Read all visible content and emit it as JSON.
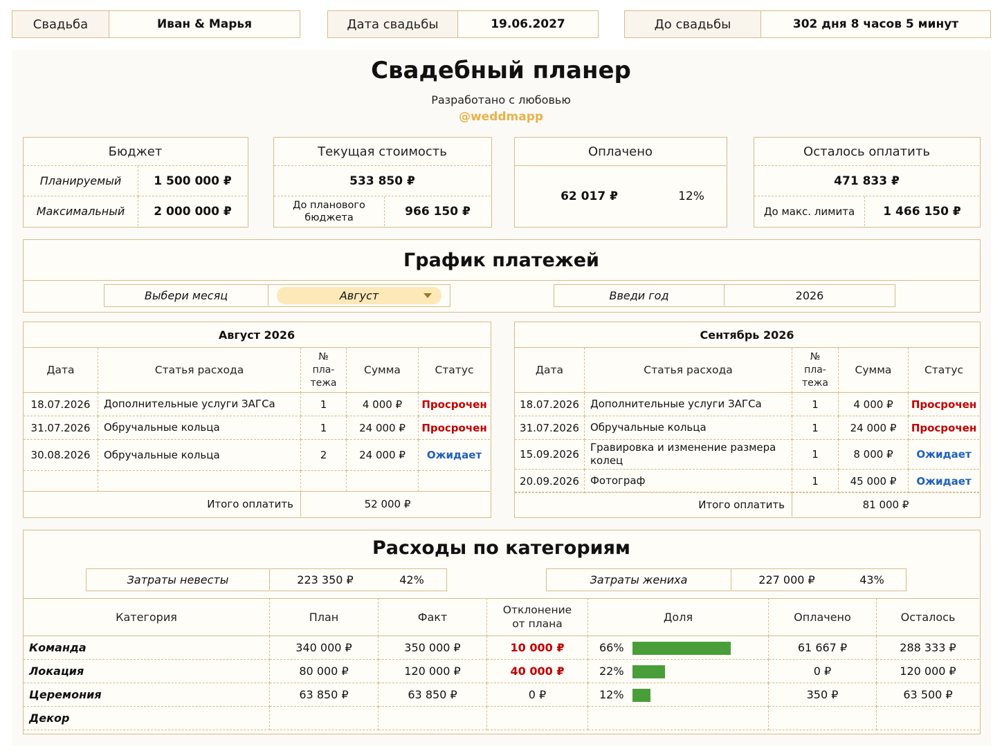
{
  "header": {
    "wedding_label": "Свадьба",
    "wedding_value": "Иван & Марья",
    "date_label": "Дата свадьбы",
    "date_value": "19.06.2027",
    "countdown_label": "До свадьбы",
    "countdown_value": "302 дня 8 часов 5 минут"
  },
  "title": "Свадебный планер",
  "subtitle": "Разработано с любовью",
  "handle": "@weddmapp",
  "budget": {
    "title": "Бюджет",
    "planned_label": "Планируемый",
    "planned_value": "1 500 000 ₽",
    "max_label": "Максимальный",
    "max_value": "2 000 000 ₽"
  },
  "current": {
    "title": "Текущая стоимость",
    "value": "533 850 ₽",
    "to_plan_label": "До планового бюджета",
    "to_plan_value": "966 150 ₽"
  },
  "paid": {
    "title": "Оплачено",
    "value": "62 017 ₽",
    "percent": "12%"
  },
  "remaining": {
    "title": "Осталось оплатить",
    "value": "471 833 ₽",
    "to_max_label": "До макс. лимита",
    "to_max_value": "1 466 150 ₽"
  },
  "schedule": {
    "title": "График платежей",
    "month_label": "Выбери месяц",
    "month_value": "Август",
    "year_label": "Введи год",
    "year_value": "2026"
  },
  "columns": {
    "date": "Дата",
    "item": "Статья расхода",
    "num": "№ пла-тежа",
    "sum": "Сумма",
    "status": "Статус",
    "total_label": "Итого оплатить"
  },
  "august": {
    "title": "Август 2026",
    "rows": [
      {
        "date": "18.07.2026",
        "item": "Дополнительные услуги ЗАГСа",
        "num": "1",
        "sum": "4 000 ₽",
        "status": "Просрочен",
        "kind": "overdue"
      },
      {
        "date": "31.07.2026",
        "item": "Обручальные кольца",
        "num": "1",
        "sum": "24 000 ₽",
        "status": "Просрочен",
        "kind": "overdue"
      },
      {
        "date": "30.08.2026",
        "item": "Обручальные кольца",
        "num": "2",
        "sum": "24 000 ₽",
        "status": "Ожидает",
        "kind": "waiting"
      }
    ],
    "total": "52 000 ₽"
  },
  "september": {
    "title": "Сентябрь 2026",
    "rows": [
      {
        "date": "18.07.2026",
        "item": "Дополнительные услуги ЗАГСа",
        "num": "1",
        "sum": "4 000 ₽",
        "status": "Просрочен",
        "kind": "overdue"
      },
      {
        "date": "31.07.2026",
        "item": "Обручальные кольца",
        "num": "1",
        "sum": "24 000 ₽",
        "status": "Просрочен",
        "kind": "overdue"
      },
      {
        "date": "15.09.2026",
        "item": "Гравировка и изменение размера колец",
        "num": "1",
        "sum": "8 000 ₽",
        "status": "Ожидает",
        "kind": "waiting"
      },
      {
        "date": "20.09.2026",
        "item": "Фотограф",
        "num": "1",
        "sum": "45 000 ₽",
        "status": "Ожидает",
        "kind": "waiting"
      }
    ],
    "total": "81 000 ₽"
  },
  "categories": {
    "title": "Расходы по категориям",
    "bride_label": "Затраты невесты",
    "bride_value": "223 350 ₽",
    "bride_percent": "42%",
    "groom_label": "Затраты жениха",
    "groom_value": "227 000 ₽",
    "groom_percent": "43%",
    "headers": {
      "category": "Категория",
      "plan": "План",
      "fact": "Факт",
      "deviation": "Отклонение от плана",
      "share": "Доля",
      "paid": "Оплачено",
      "left": "Осталось"
    },
    "rows": [
      {
        "name": "Команда",
        "plan": "340 000 ₽",
        "fact": "350 000 ₽",
        "deviation": "10 000 ₽",
        "dev_red": true,
        "share": "66%",
        "share_value": 0.66,
        "paid": "61 667 ₽",
        "left": "288 333 ₽"
      },
      {
        "name": "Локация",
        "plan": "80 000 ₽",
        "fact": "120 000 ₽",
        "deviation": "40 000 ₽",
        "dev_red": true,
        "share": "22%",
        "share_value": 0.22,
        "paid": "0 ₽",
        "left": "120 000 ₽"
      },
      {
        "name": "Церемония",
        "plan": "63 850 ₽",
        "fact": "63 850 ₽",
        "deviation": "0 ₽",
        "dev_red": false,
        "share": "12%",
        "share_value": 0.12,
        "paid": "350 ₽",
        "left": "63 500 ₽"
      },
      {
        "name": "Декор",
        "plan": "",
        "fact": "",
        "deviation": "",
        "dev_red": false,
        "share": "",
        "share_value": 0,
        "paid": "",
        "left": ""
      }
    ]
  },
  "colors": {
    "border": "#d9b98a",
    "accent": "#e8b24a",
    "overdue": "#c00000",
    "waiting": "#1f5fbf",
    "bar": "#4a9e3a"
  }
}
